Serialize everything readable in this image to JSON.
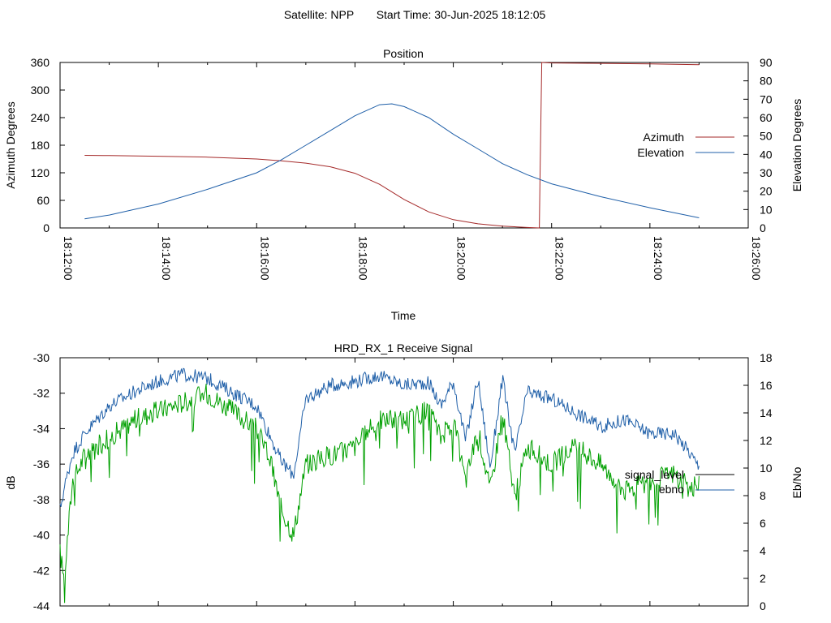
{
  "page": {
    "satellite_label": "Satellite: NPP",
    "start_time_label": "Start Time: 30-Jun-2025 18:12:05"
  },
  "chart_data": [
    {
      "type": "line",
      "title": "Position",
      "xlabel": "Time",
      "ylabel": "Azimuth Degrees",
      "y2label": "Elevation Degrees",
      "x_ticks": [
        "18:12:00",
        "18:14:00",
        "18:16:00",
        "18:18:00",
        "18:20:00",
        "18:22:00",
        "18:24:00",
        "18:26:00"
      ],
      "xlim_minutes_after_18h": [
        12,
        26
      ],
      "ylim": [
        0,
        360
      ],
      "y_ticks": [
        0,
        60,
        120,
        180,
        240,
        300,
        360
      ],
      "y2lim": [
        0,
        90
      ],
      "y2_ticks": [
        0,
        10,
        20,
        30,
        40,
        50,
        60,
        70,
        80,
        90
      ],
      "legend_position": "right",
      "series": [
        {
          "name": "Azimuth",
          "axis": "left",
          "color": "#a52a2a",
          "x": [
            "18:12:30",
            "18:13:00",
            "18:14:00",
            "18:15:00",
            "18:16:00",
            "18:16:30",
            "18:17:00",
            "18:17:30",
            "18:18:00",
            "18:18:30",
            "18:19:00",
            "18:19:30",
            "18:20:00",
            "18:20:30",
            "18:21:00",
            "18:21:30",
            "18:21:45",
            "18:21:46",
            "18:21:48",
            "18:22:00",
            "18:23:00",
            "18:24:00",
            "18:25:00"
          ],
          "values": [
            158,
            157.5,
            156,
            154,
            150,
            146,
            141,
            133,
            119,
            95,
            62,
            35,
            18,
            9,
            4,
            1,
            0,
            130,
            360,
            359,
            358,
            357,
            355
          ]
        },
        {
          "name": "Elevation",
          "axis": "right",
          "color": "#1f5fa8",
          "x": [
            "18:12:30",
            "18:13:00",
            "18:14:00",
            "18:15:00",
            "18:16:00",
            "18:16:30",
            "18:17:00",
            "18:17:30",
            "18:18:00",
            "18:18:30",
            "18:18:45",
            "18:19:00",
            "18:19:30",
            "18:20:00",
            "18:20:30",
            "18:21:00",
            "18:21:30",
            "18:22:00",
            "18:23:00",
            "18:24:00",
            "18:25:00"
          ],
          "values": [
            5,
            7,
            13,
            21,
            30,
            37,
            45,
            53,
            61,
            67,
            67.5,
            66,
            60,
            51,
            43,
            35,
            29,
            24,
            17,
            11,
            5.5
          ]
        }
      ]
    },
    {
      "type": "line",
      "title": "HRD_RX_1 Receive Signal",
      "ylabel": "dB",
      "y2label": "Eb/No",
      "xlim_minutes_after_18h": [
        12,
        26
      ],
      "ylim": [
        -44,
        -30
      ],
      "y_ticks": [
        -44,
        -42,
        -40,
        -38,
        -36,
        -34,
        -32,
        -30
      ],
      "y2lim": [
        0,
        18
      ],
      "y2_ticks": [
        0,
        2,
        4,
        6,
        8,
        10,
        12,
        14,
        16,
        18
      ],
      "legend_position": "right",
      "series": [
        {
          "name": "signal_level",
          "axis": "left",
          "color": "#00a000",
          "x": [
            "18:12:00",
            "18:12:05",
            "18:12:15",
            "18:12:30",
            "18:13:00",
            "18:13:30",
            "18:14:00",
            "18:14:30",
            "18:15:00",
            "18:15:30",
            "18:16:00",
            "18:16:15",
            "18:16:30",
            "18:16:45",
            "18:17:00",
            "18:17:30",
            "18:18:00",
            "18:18:30",
            "18:19:00",
            "18:19:30",
            "18:19:45",
            "18:20:00",
            "18:20:15",
            "18:20:30",
            "18:20:45",
            "18:21:00",
            "18:21:15",
            "18:21:30",
            "18:22:00",
            "18:22:30",
            "18:23:00",
            "18:23:30",
            "18:24:00",
            "18:24:30",
            "18:24:50",
            "18:25:00"
          ],
          "values": [
            -41,
            -42.5,
            -37,
            -35.5,
            -34.5,
            -33.5,
            -33,
            -32.5,
            -32,
            -33,
            -34,
            -35.5,
            -38.5,
            -40,
            -36,
            -35.5,
            -35,
            -33.5,
            -33.5,
            -33,
            -34.5,
            -33.5,
            -37,
            -34,
            -37.5,
            -33,
            -38,
            -35,
            -36,
            -35,
            -36,
            -37.5,
            -37,
            -36.5,
            -37.5,
            -37
          ]
        },
        {
          "name": "ebno",
          "axis": "right",
          "color": "#1f5fa8",
          "x": [
            "18:12:00",
            "18:12:05",
            "18:12:15",
            "18:12:30",
            "18:13:00",
            "18:13:30",
            "18:14:00",
            "18:14:30",
            "18:15:00",
            "18:15:30",
            "18:16:00",
            "18:16:15",
            "18:16:30",
            "18:16:45",
            "18:17:00",
            "18:17:30",
            "18:18:00",
            "18:18:30",
            "18:19:00",
            "18:19:30",
            "18:19:45",
            "18:20:00",
            "18:20:15",
            "18:20:30",
            "18:20:45",
            "18:21:00",
            "18:21:15",
            "18:21:30",
            "18:22:00",
            "18:22:30",
            "18:23:00",
            "18:23:30",
            "18:24:00",
            "18:24:30",
            "18:24:50",
            "18:25:00"
          ],
          "values": [
            7,
            8.5,
            11,
            12.5,
            14.5,
            15.5,
            16.3,
            16.8,
            16.5,
            15.5,
            14.5,
            12.5,
            10.5,
            9.5,
            15,
            16,
            16.3,
            16.7,
            16,
            16.2,
            14.5,
            16.3,
            12,
            16.5,
            10,
            16.5,
            11,
            15.5,
            15,
            14,
            13,
            13.5,
            12.5,
            12.5,
            11,
            10
          ]
        }
      ]
    }
  ]
}
